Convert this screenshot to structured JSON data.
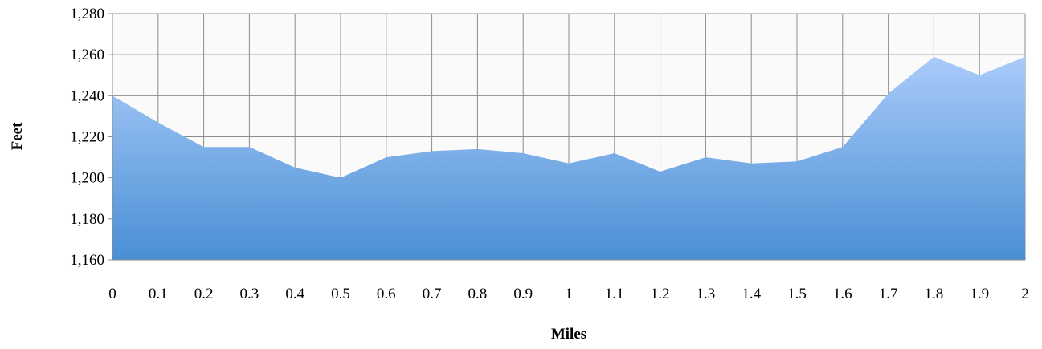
{
  "chart_data": {
    "type": "area",
    "title": "",
    "xlabel": "Miles",
    "ylabel": "Feet",
    "x": [
      "0",
      "0.1",
      "0.2",
      "0.3",
      "0.4",
      "0.5",
      "0.6",
      "0.7",
      "0.8",
      "0.9",
      "1",
      "1.1",
      "1.2",
      "1.3",
      "1.4",
      "1.5",
      "1.6",
      "1.7",
      "1.8",
      "1.9",
      "2"
    ],
    "series": [
      {
        "values": [
          1240,
          1227,
          1215,
          1215,
          1205,
          1200,
          1210,
          1213,
          1214,
          1212,
          1207,
          1212,
          1203,
          1210,
          1207,
          1208,
          1215,
          1241,
          1259,
          1250,
          1259
        ]
      }
    ],
    "ylim": [
      1160,
      1280
    ],
    "yticks": [
      1160,
      1180,
      1200,
      1220,
      1240,
      1260,
      1280
    ],
    "ytick_labels": [
      "1,160",
      "1,180",
      "1,200",
      "1,220",
      "1,240",
      "1,260",
      "1,280"
    ],
    "grid": true,
    "legend": "none",
    "colors": {
      "area_top": "#a9cbfa",
      "area_bottom": "#4a8fd4",
      "grid": "#8c8c8c",
      "plot_bg": "#fafafa"
    }
  }
}
